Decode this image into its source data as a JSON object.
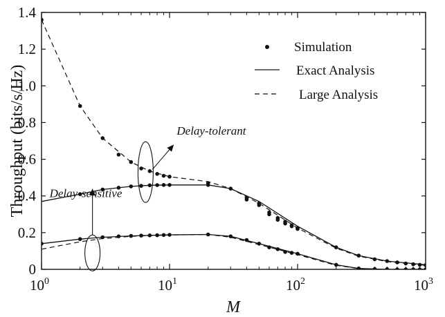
{
  "chart_data": {
    "type": "line",
    "xscale": "log",
    "xlim": [
      1,
      1000
    ],
    "ylim": [
      0,
      1.4
    ],
    "xlabel": "M",
    "ylabel": "Throughput (bits/s/Hz)",
    "grid": false,
    "legend_position": "top-right",
    "yticks": [
      "0",
      "0.2",
      "0.4",
      "0.6",
      "0.8",
      "1.0",
      "1.2",
      "1.4"
    ],
    "xticks": [
      {
        "base": "10",
        "exp": "0",
        "value": 1
      },
      {
        "base": "10",
        "exp": "1",
        "value": 10
      },
      {
        "base": "10",
        "exp": "2",
        "value": 100
      },
      {
        "base": "10",
        "exp": "3",
        "value": 1000
      }
    ],
    "legend": [
      {
        "label": "Simulation",
        "style": "dot"
      },
      {
        "label": "Exact Analysis",
        "style": "solid"
      },
      {
        "label": "Large Analysis",
        "style": "dashed"
      }
    ],
    "annotations": [
      {
        "text": "Delay-tolerant",
        "at": [
          6.5,
          0.53
        ],
        "label_at": [
          30,
          0.66
        ]
      },
      {
        "text": "Delay-sensitive",
        "at": [
          2.5,
          0.27
        ],
        "label_at": [
          2.5,
          0.48
        ]
      }
    ],
    "curves": [
      {
        "group": "Delay-tolerant",
        "kind": "exact",
        "x": [
          1,
          2,
          3,
          5,
          7,
          10,
          20,
          30,
          50,
          100,
          200,
          300,
          500,
          1000
        ],
        "y": [
          0.37,
          0.41,
          0.435,
          0.452,
          0.458,
          0.46,
          0.46,
          0.44,
          0.37,
          0.235,
          0.12,
          0.075,
          0.045,
          0.025
        ]
      },
      {
        "group": "Delay-tolerant",
        "kind": "large",
        "x": [
          1,
          2,
          3,
          5,
          7,
          10,
          20,
          30,
          50,
          100,
          200,
          300,
          500,
          1000
        ],
        "y": [
          1.36,
          0.89,
          0.715,
          0.585,
          0.535,
          0.505,
          0.478,
          0.44,
          0.36,
          0.225,
          0.115,
          0.072,
          0.042,
          0.022
        ]
      },
      {
        "group": "Delay-tolerant",
        "kind": "simulation",
        "x": [
          1,
          2,
          3,
          4,
          5,
          6,
          7,
          8,
          9,
          10,
          20,
          30,
          40,
          50,
          60,
          70,
          80,
          90,
          100,
          200,
          300,
          400,
          500,
          600,
          700,
          800,
          900,
          1000
        ],
        "y": [
          1.36,
          0.89,
          0.715,
          0.625,
          0.585,
          0.55,
          0.535,
          0.52,
          0.51,
          0.505,
          0.47,
          0.44,
          0.39,
          0.36,
          0.31,
          0.28,
          0.26,
          0.24,
          0.225,
          0.12,
          0.075,
          0.055,
          0.045,
          0.038,
          0.032,
          0.028,
          0.025,
          0.023
        ]
      },
      {
        "group": "Delay-tolerant",
        "kind": "simulation",
        "x": [
          2,
          3,
          4,
          5,
          6,
          7,
          8,
          9,
          10,
          20,
          40,
          50,
          60,
          70,
          80,
          90,
          100
        ],
        "y": [
          0.41,
          0.435,
          0.445,
          0.452,
          0.455,
          0.458,
          0.459,
          0.46,
          0.46,
          0.46,
          0.38,
          0.35,
          0.3,
          0.27,
          0.25,
          0.235,
          0.22
        ]
      },
      {
        "group": "Delay-sensitive",
        "kind": "exact",
        "x": [
          1,
          2,
          3,
          5,
          7,
          10,
          20,
          30,
          50,
          100,
          200,
          300,
          500,
          1000
        ],
        "y": [
          0.14,
          0.165,
          0.175,
          0.182,
          0.185,
          0.188,
          0.19,
          0.18,
          0.14,
          0.085,
          0.025,
          0.005,
          0,
          0
        ]
      },
      {
        "group": "Delay-sensitive",
        "kind": "large",
        "x": [
          1,
          2,
          3,
          5,
          7,
          10,
          20,
          30,
          50,
          100,
          200,
          300,
          500,
          1000
        ],
        "y": [
          0.11,
          0.15,
          0.168,
          0.18,
          0.184,
          0.187,
          0.19,
          0.175,
          0.135,
          0.08,
          0.022,
          0.004,
          0,
          0
        ]
      },
      {
        "group": "Delay-sensitive",
        "kind": "simulation",
        "x": [
          1,
          2,
          3,
          4,
          5,
          6,
          7,
          8,
          9,
          10,
          20,
          30,
          40,
          50,
          60,
          70,
          80,
          90,
          100,
          200,
          300,
          400,
          500,
          600,
          700,
          800,
          900,
          1000
        ],
        "y": [
          0.14,
          0.165,
          0.175,
          0.18,
          0.182,
          0.184,
          0.185,
          0.186,
          0.187,
          0.188,
          0.19,
          0.18,
          0.16,
          0.14,
          0.12,
          0.11,
          0.095,
          0.09,
          0.085,
          0.025,
          0.005,
          0.002,
          0.001,
          0,
          0,
          0,
          0,
          0
        ]
      }
    ]
  }
}
